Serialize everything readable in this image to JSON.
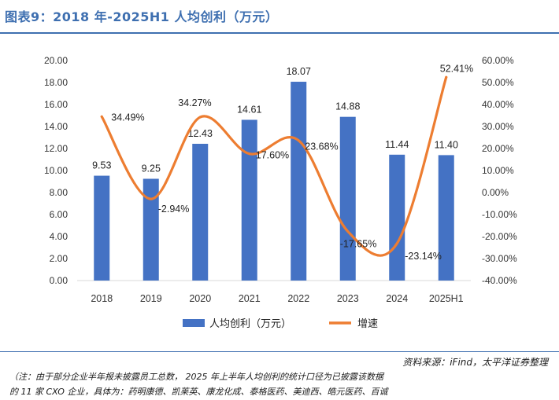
{
  "header": {
    "title": "图表9：2018 年-2025H1 人均创利（万元）"
  },
  "footer": {
    "source": "资料来源：iFind，太平洋证券整理",
    "note_line1": "（注：由于部分企业半年报未披露员工总数， 2025 年上半年人均创利的统计口径为已披露该数据",
    "note_line2": "的 11 家 CXO 企业，具体为：药明康德、凯莱英、康龙化成、泰格医药、美迪西、皓元医药、百诚"
  },
  "colors": {
    "bar": "#4472c4",
    "line": "#ed7d31",
    "title": "#3e6fb0"
  },
  "chart_data": {
    "type": "bar",
    "title": "2018 年-2025H1 人均创利（万元）",
    "categories": [
      "2018",
      "2019",
      "2020",
      "2021",
      "2022",
      "2023",
      "2024",
      "2025H1"
    ],
    "series": [
      {
        "name": "人均创利（万元）",
        "type": "bar",
        "axis": "left",
        "values": [
          9.53,
          9.25,
          12.43,
          14.61,
          18.07,
          14.88,
          11.44,
          11.4
        ],
        "labels": [
          "9.53",
          "9.25",
          "12.43",
          "14.61",
          "18.07",
          "14.88",
          "11.44",
          "11.40"
        ]
      },
      {
        "name": "增速",
        "type": "line",
        "axis": "right",
        "values": [
          34.49,
          -2.94,
          34.27,
          17.6,
          23.68,
          -17.65,
          -23.14,
          52.41
        ],
        "labels": [
          "34.49%",
          "-2.94%",
          "34.27%",
          "17.60%",
          "23.68%",
          "-17.65%",
          "-23.14%",
          "52.41%"
        ]
      }
    ],
    "y_left": {
      "ylim": [
        0,
        20
      ],
      "ticks": [
        "0.00",
        "2.00",
        "4.00",
        "6.00",
        "8.00",
        "10.00",
        "12.00",
        "14.00",
        "16.00",
        "18.00",
        "20.00"
      ]
    },
    "y_right": {
      "ylim": [
        -40,
        60
      ],
      "ticks": [
        "-40.00%",
        "-30.00%",
        "-20.00%",
        "-10.00%",
        "0.00%",
        "10.00%",
        "20.00%",
        "30.00%",
        "40.00%",
        "50.00%",
        "60.00%"
      ]
    },
    "legend": {
      "position": "bottom",
      "items": [
        "人均创利（万元）",
        "增速"
      ]
    },
    "grid": false
  }
}
